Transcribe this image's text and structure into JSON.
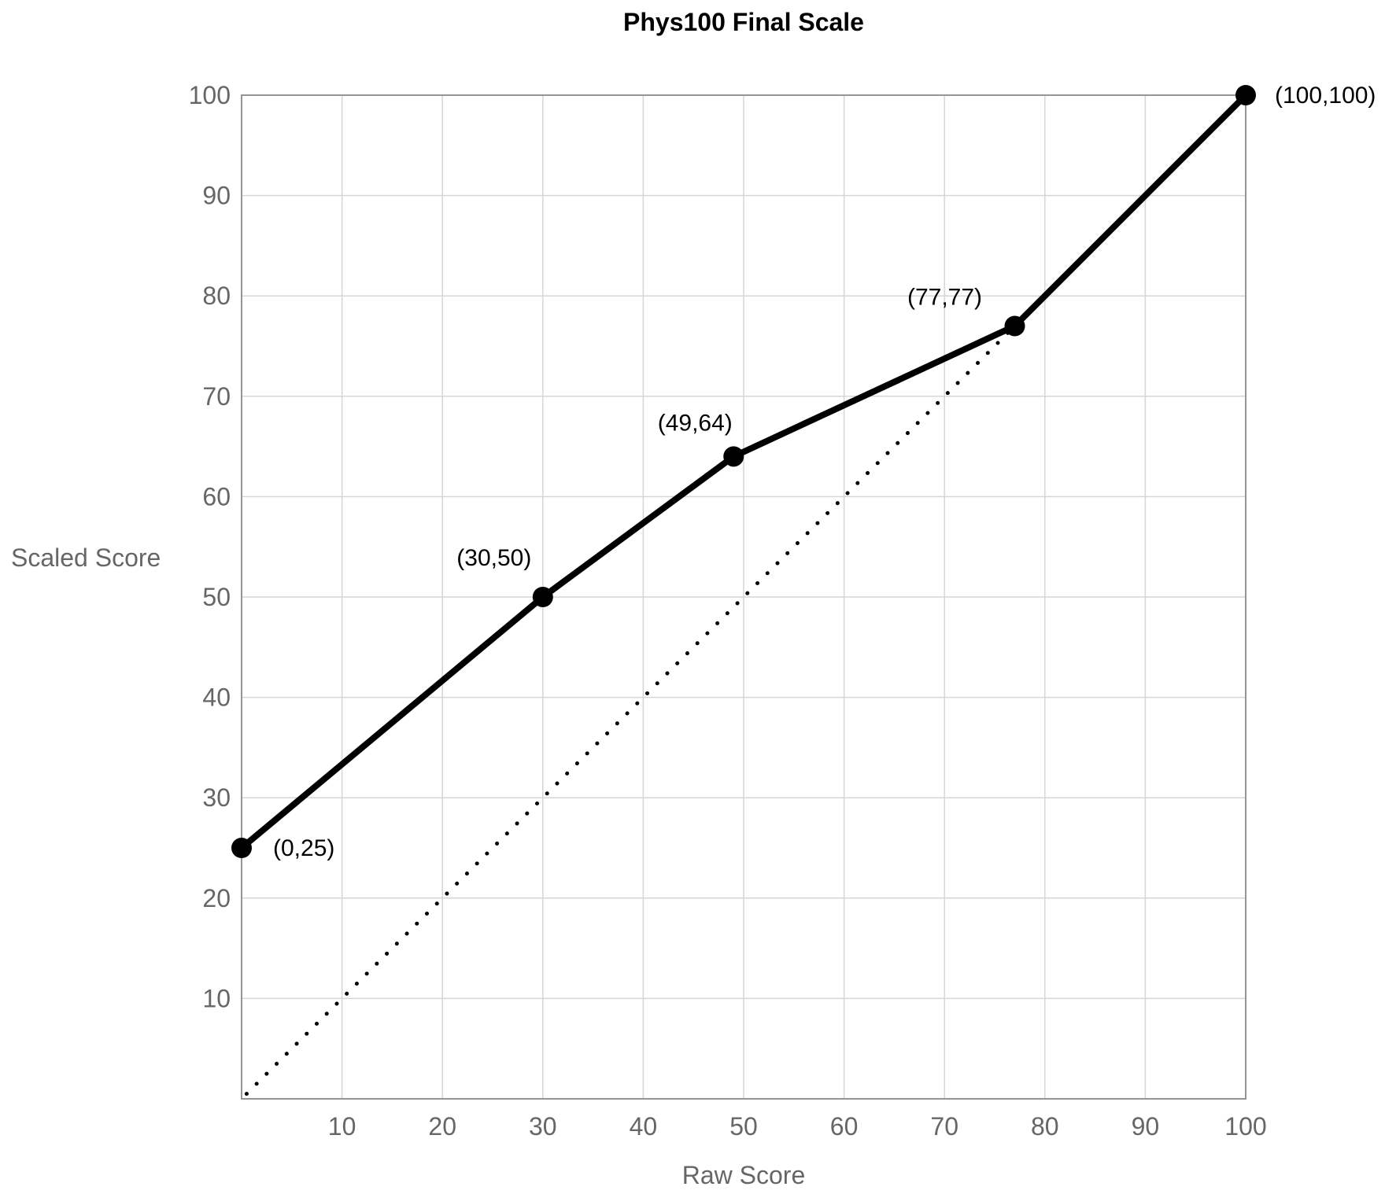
{
  "chart_data": {
    "type": "line",
    "title": "Phys100 Final Scale",
    "xlabel": "Raw Score",
    "ylabel": "Scaled Score",
    "xlim": [
      0,
      100
    ],
    "ylim": [
      0,
      100
    ],
    "x_ticks": [
      10,
      20,
      30,
      40,
      50,
      60,
      70,
      80,
      90,
      100
    ],
    "y_ticks": [
      10,
      20,
      30,
      40,
      50,
      60,
      70,
      80,
      90,
      100
    ],
    "grid": true,
    "legend": false,
    "series": [
      {
        "name": "identity-reference-line",
        "style": "dotted",
        "color": "#000000",
        "line_width": 5,
        "points": [
          {
            "x": 0,
            "y": 0
          },
          {
            "x": 100,
            "y": 100
          }
        ]
      },
      {
        "name": "scaling-curve",
        "style": "solid",
        "color": "#000000",
        "line_width": 8,
        "marker_radius": 13,
        "points": [
          {
            "x": 0,
            "y": 25,
            "label": "(0,25)",
            "label_anchor": "start",
            "label_dx": 40,
            "label_dy": 10
          },
          {
            "x": 30,
            "y": 50,
            "label": "(30,50)",
            "label_anchor": "middle",
            "label_dx": -62,
            "label_dy": -40
          },
          {
            "x": 49,
            "y": 64,
            "label": "(49,64)",
            "label_anchor": "middle",
            "label_dx": -49,
            "label_dy": -33
          },
          {
            "x": 77,
            "y": 77,
            "label": "(77,77)",
            "label_anchor": "middle",
            "label_dx": -89,
            "label_dy": -27
          },
          {
            "x": 100,
            "y": 100,
            "label": "(100,100)",
            "label_anchor": "start",
            "label_dx": 37,
            "label_dy": 10
          }
        ]
      }
    ],
    "colors": {
      "background": "#ffffff",
      "grid": "#d6d6d6",
      "axis_border": "#959595",
      "tick_text": "#666666",
      "axis_label_text": "#666666",
      "data": "#000000",
      "point_label_text": "#000000"
    },
    "fonts": {
      "tick_size": 32,
      "point_label_size": 30
    }
  }
}
